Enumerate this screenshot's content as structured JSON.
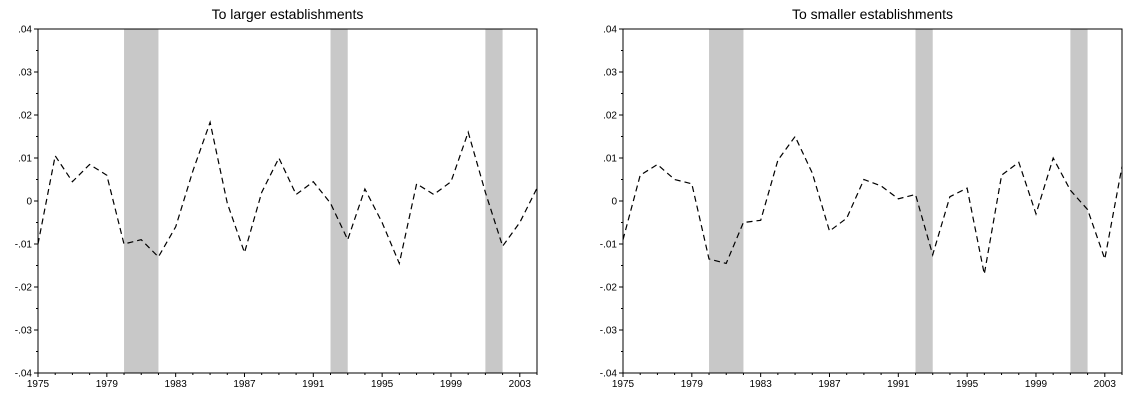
{
  "chart_data": [
    {
      "type": "line",
      "title": "To larger establishments",
      "xlabel": "",
      "ylabel": "",
      "xlim": [
        1975,
        2004
      ],
      "ylim": [
        -0.04,
        0.04
      ],
      "x_ticks": [
        "1975",
        "1979",
        "1983",
        "1987",
        "1991",
        "1995",
        "1999",
        "2003"
      ],
      "y_ticks": [
        ".04",
        ".03",
        ".02",
        ".01",
        "0",
        "-.01",
        "-.02",
        "-.03",
        "-.04"
      ],
      "grid": false,
      "line_style": "dashed",
      "line_color": "#000000",
      "shade_color": "#c8c8c8",
      "shaded_periods": [
        [
          1980,
          1982
        ],
        [
          1992,
          1993
        ],
        [
          2001,
          2002
        ]
      ],
      "series": [
        {
          "x": [
            1975,
            1976,
            1977,
            1978,
            1979,
            1980,
            1981,
            1982,
            1983,
            1984,
            1985,
            1986,
            1987,
            1988,
            1989,
            1990,
            1991,
            1992,
            1993,
            1994,
            1995,
            1996,
            1997,
            1998,
            1999,
            2000,
            2001,
            2002,
            2003,
            2004
          ],
          "values": [
            -0.01,
            0.0105,
            0.0045,
            0.0085,
            0.006,
            -0.01,
            -0.009,
            -0.013,
            -0.006,
            0.007,
            0.0183,
            -0.0005,
            -0.012,
            0.002,
            0.01,
            0.0015,
            0.0045,
            -0.0005,
            -0.009,
            0.0028,
            -0.005,
            -0.0145,
            0.004,
            0.0015,
            0.0045,
            0.016,
            0.002,
            -0.0105,
            -0.005,
            0.003
          ]
        }
      ]
    },
    {
      "type": "line",
      "title": "To smaller establishments",
      "xlabel": "",
      "ylabel": "",
      "xlim": [
        1975,
        2004
      ],
      "ylim": [
        -0.04,
        0.04
      ],
      "x_ticks": [
        "1975",
        "1979",
        "1983",
        "1987",
        "1991",
        "1995",
        "1999",
        "2003"
      ],
      "y_ticks": [
        ".04",
        ".03",
        ".02",
        ".01",
        "0",
        "-.01",
        "-.02",
        "-.03",
        "-.04"
      ],
      "grid": false,
      "line_style": "dashed",
      "line_color": "#000000",
      "shade_color": "#c8c8c8",
      "shaded_periods": [
        [
          1980,
          1982
        ],
        [
          1992,
          1993
        ],
        [
          2001,
          2002
        ]
      ],
      "series": [
        {
          "x": [
            1975,
            1976,
            1977,
            1978,
            1979,
            1980,
            1981,
            1982,
            1983,
            1984,
            1985,
            1986,
            1987,
            1988,
            1989,
            1990,
            1991,
            1992,
            1993,
            1994,
            1995,
            1996,
            1997,
            1998,
            1999,
            2000,
            2001,
            2002,
            2003,
            2004
          ],
          "values": [
            -0.009,
            0.006,
            0.0085,
            0.005,
            0.004,
            -0.0135,
            -0.0145,
            -0.005,
            -0.0045,
            0.0095,
            0.015,
            0.0065,
            -0.007,
            -0.004,
            0.005,
            0.0035,
            0.0005,
            0.0015,
            -0.0125,
            0.001,
            0.003,
            -0.017,
            0.006,
            0.009,
            -0.003,
            0.01,
            0.0025,
            -0.002,
            -0.0135,
            0.008
          ]
        }
      ]
    }
  ]
}
